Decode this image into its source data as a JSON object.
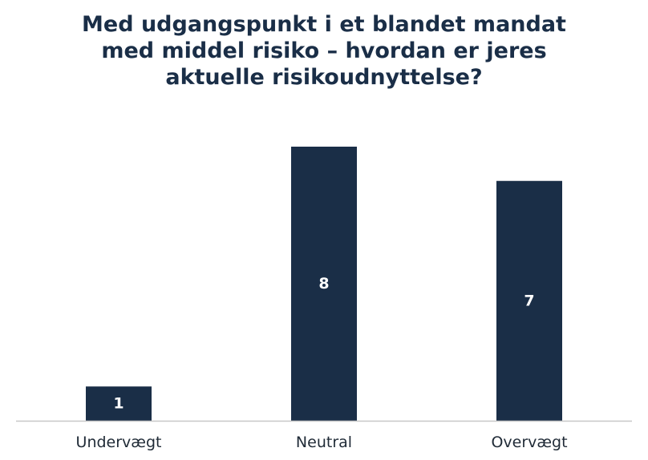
{
  "chart_data": {
    "type": "bar",
    "title_lines": [
      "Med udgangspunkt i et blandet mandat",
      "med middel risiko – hvordan er jeres",
      "aktuelle risikoudnyttelse?"
    ],
    "categories": [
      "Undervægt",
      "Neutral",
      "Overvægt"
    ],
    "values": [
      1,
      8,
      7
    ],
    "data_labels": [
      "1",
      "8",
      "7"
    ],
    "ylim": [
      0,
      8
    ],
    "grid": false,
    "colors": {
      "bar": "#1a2e47",
      "title": "#1a2e47",
      "axis": "#c8c8c8",
      "data_label": "#ffffff"
    }
  }
}
